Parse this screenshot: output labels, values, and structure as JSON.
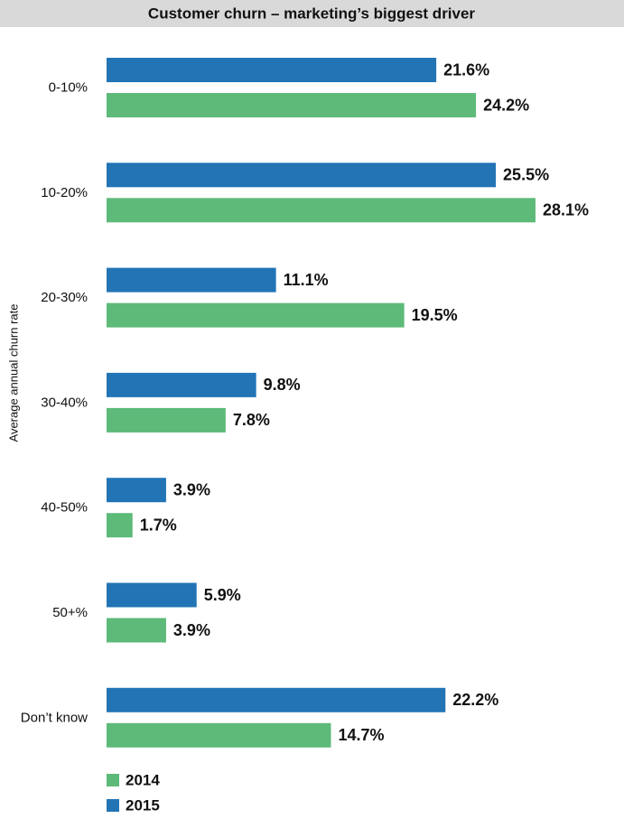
{
  "chart_data": {
    "type": "bar",
    "orientation": "horizontal",
    "title": "Customer churn – marketing’s biggest driver",
    "y_label": "Average annual churn rate",
    "categories": [
      "0-10%",
      "10-20%",
      "20-30%",
      "30-40%",
      "40-50%",
      "50+%",
      "Don’t know"
    ],
    "series": [
      {
        "name": "2014",
        "color": "#5dba79",
        "values": [
          24.2,
          28.1,
          19.5,
          7.8,
          1.7,
          3.9,
          14.7
        ],
        "value_labels": [
          "24.2%",
          "28.1%",
          "19.5%",
          "7.8%",
          "1.7%",
          "3.9%",
          "14.7%"
        ]
      },
      {
        "name": "2015",
        "color": "#2274b5",
        "values": [
          21.6,
          25.5,
          11.1,
          9.8,
          3.9,
          5.9,
          22.2
        ],
        "value_labels": [
          "21.6%",
          "25.5%",
          "11.1%",
          "9.8%",
          "3.9%",
          "5.9%",
          "22.2%"
        ]
      }
    ],
    "legend": "bottom-left"
  }
}
